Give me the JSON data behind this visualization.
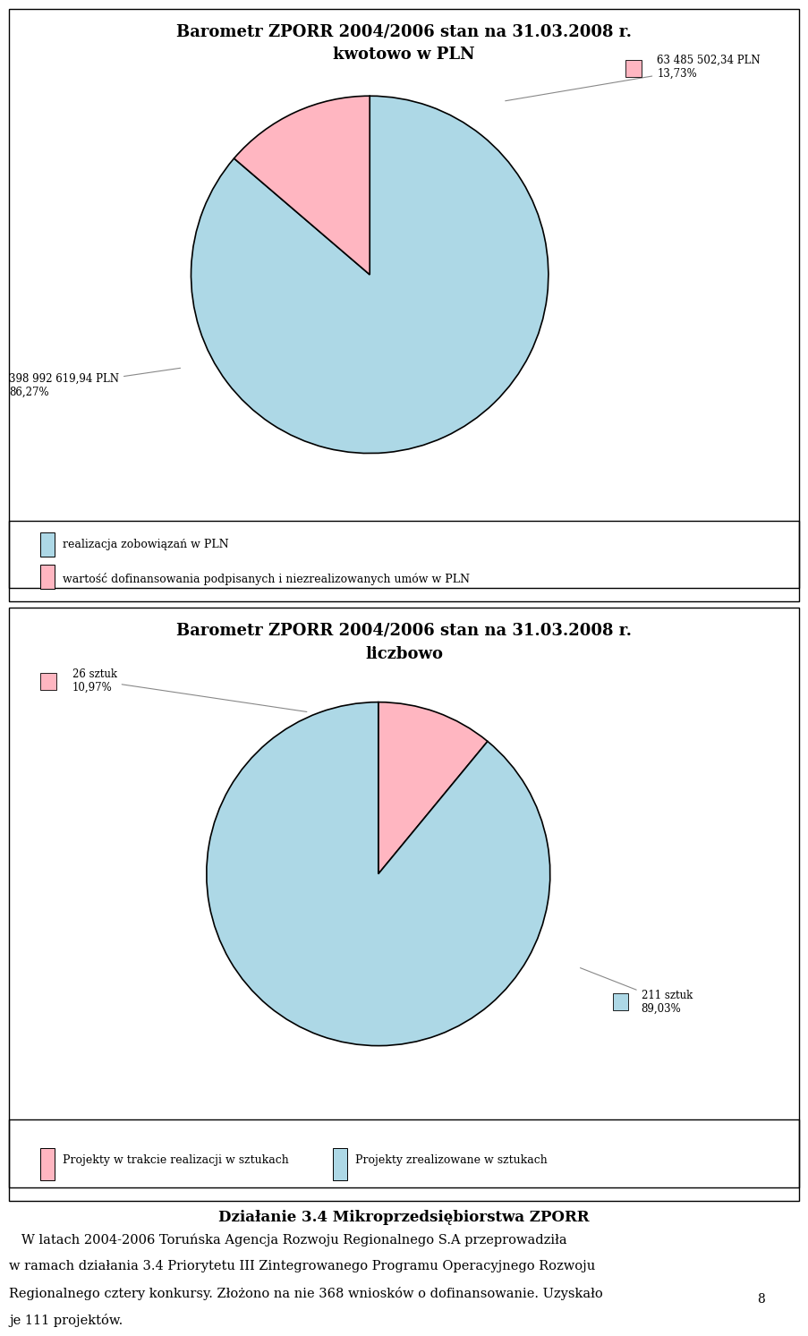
{
  "chart1_title1": "Barometr ZPORR 2004/2006 stan na 31.03.2008 r.",
  "chart1_title2": "kwotowo w PLN",
  "chart1_values": [
    398992619.94,
    63485502.34
  ],
  "chart1_colors": [
    "#add8e6",
    "#ffb6c1"
  ],
  "chart1_labels": [
    "realizacja zobowiązań w PLN",
    "wartość dofinansowania podpisanych i niezrealizowanych umów w PLN"
  ],
  "chart1_annot_pink_label": "63 485 502,34 PLN\n13,73%",
  "chart1_annot_blue_label": "398 992 619,94 PLN\n86,27%",
  "chart2_title1": "Barometr ZPORR 2004/2006 stan na 31.03.2008 r.",
  "chart2_title2": "liczbowo",
  "chart2_values": [
    26,
    211
  ],
  "chart2_colors": [
    "#ffb6c1",
    "#add8e6"
  ],
  "chart2_labels": [
    "Projekty w trakcie realizacji w sztukach",
    "Projekty zrealizowane w sztukach"
  ],
  "chart2_annot_pink_label": "26 sztuk\n10,97%",
  "chart2_annot_blue_label": "211 sztuk\n89,03%",
  "text_title": "Działanie 3.4 Mikroprzedsiębiorstwa ZPORR",
  "text_line1": "   W latach 2004-2006 Toruńska Agencja Rozwoju Regionalnego S.A przeprowadziła",
  "text_line2": "w ramach działania 3.4 Priorytetu III Zintegrowanego Programu Operacyjnego Rozwoju",
  "text_line3": "Regionalnego cztery konkursy. Złożono na nie 368 wniosków o dofinansowanie. Uzyskało",
  "text_line4": "je 111 projektów.",
  "page_number": "8",
  "bg_color": "#ffffff"
}
